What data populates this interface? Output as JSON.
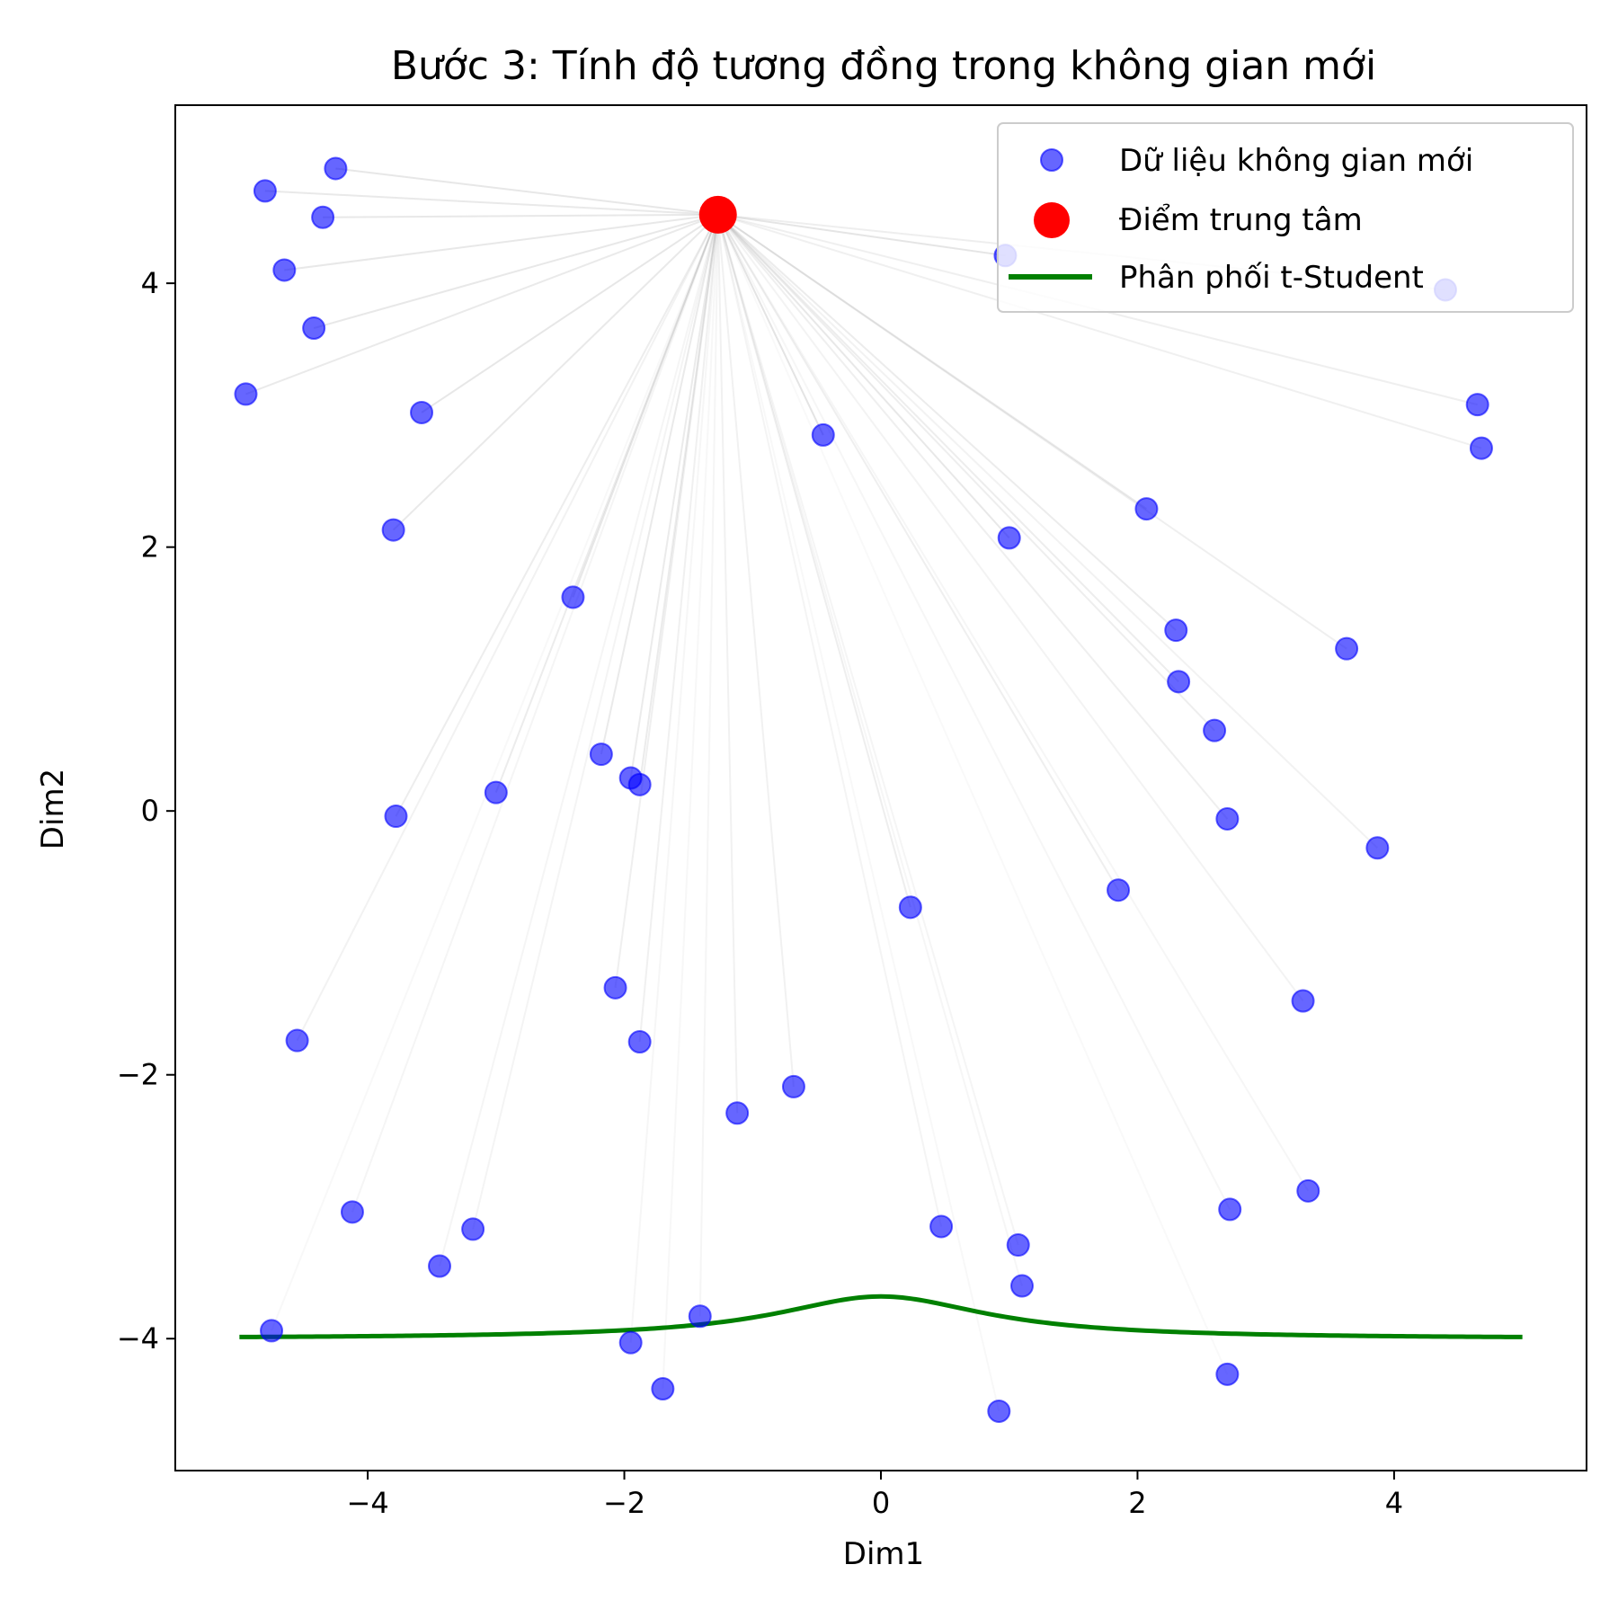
{
  "chart_data": {
    "type": "scatter",
    "title": "Bước 3: Tính độ tương đồng trong không gian mới",
    "xlabel": "Dim1",
    "ylabel": "Dim2",
    "xlim": [
      -5.5,
      5.5
    ],
    "ylim": [
      -5.0,
      5.35
    ],
    "xticks": [
      -4,
      -2,
      0,
      2,
      4
    ],
    "yticks": [
      -4,
      -2,
      0,
      2,
      4
    ],
    "xtick_labels": [
      "−4",
      "−2",
      "0",
      "2",
      "4"
    ],
    "ytick_labels": [
      "−4",
      "−2",
      "0",
      "2",
      "4"
    ],
    "grid": false,
    "legend": {
      "position": "top-right",
      "entries": [
        "Dữ liệu không gian mới",
        "Điểm trung tâm",
        "Phân phối t-Student"
      ]
    },
    "colors": {
      "points": "#0000ff",
      "center": "#ff0000",
      "curve": "#008000",
      "lines": "#808080"
    },
    "series": [
      {
        "name": "Dữ liệu không gian mới",
        "type": "scatter",
        "points": [
          [
            -4.8,
            4.7
          ],
          [
            -4.25,
            4.87
          ],
          [
            -4.35,
            4.5
          ],
          [
            -4.65,
            4.1
          ],
          [
            -4.42,
            3.66
          ],
          [
            -4.95,
            3.16
          ],
          [
            -3.58,
            3.02
          ],
          [
            -3.8,
            2.13
          ],
          [
            -2.4,
            1.62
          ],
          [
            -0.45,
            2.85
          ],
          [
            1.0,
            2.07
          ],
          [
            2.07,
            2.29
          ],
          [
            0.97,
            4.21
          ],
          [
            4.4,
            3.95
          ],
          [
            4.65,
            3.08
          ],
          [
            4.68,
            2.75
          ],
          [
            2.3,
            1.37
          ],
          [
            2.32,
            0.98
          ],
          [
            3.63,
            1.23
          ],
          [
            2.6,
            0.61
          ],
          [
            -2.18,
            0.43
          ],
          [
            -1.95,
            0.25
          ],
          [
            -1.88,
            0.2
          ],
          [
            -3.0,
            0.14
          ],
          [
            -3.78,
            -0.04
          ],
          [
            2.7,
            -0.06
          ],
          [
            3.87,
            -0.28
          ],
          [
            1.85,
            -0.6
          ],
          [
            0.23,
            -0.73
          ],
          [
            -2.07,
            -1.34
          ],
          [
            -1.88,
            -1.75
          ],
          [
            3.29,
            -1.44
          ],
          [
            -4.55,
            -1.74
          ],
          [
            -0.68,
            -2.09
          ],
          [
            -1.12,
            -2.29
          ],
          [
            3.33,
            -2.88
          ],
          [
            2.72,
            -3.02
          ],
          [
            -4.12,
            -3.04
          ],
          [
            -3.18,
            -3.17
          ],
          [
            0.47,
            -3.15
          ],
          [
            1.07,
            -3.29
          ],
          [
            -3.44,
            -3.45
          ],
          [
            1.1,
            -3.6
          ],
          [
            -1.41,
            -3.83
          ],
          [
            -4.75,
            -3.94
          ],
          [
            -1.95,
            -4.03
          ],
          [
            2.7,
            -4.27
          ],
          [
            -1.7,
            -4.38
          ],
          [
            0.92,
            -4.55
          ]
        ]
      },
      {
        "name": "Điểm trung tâm",
        "type": "scatter",
        "points": [
          [
            -1.27,
            4.52
          ]
        ]
      },
      {
        "name": "Phân phối t-Student",
        "type": "line",
        "x_range": [
          -5,
          5
        ],
        "baseline": -4.0,
        "peak": 0.32
      }
    ]
  }
}
